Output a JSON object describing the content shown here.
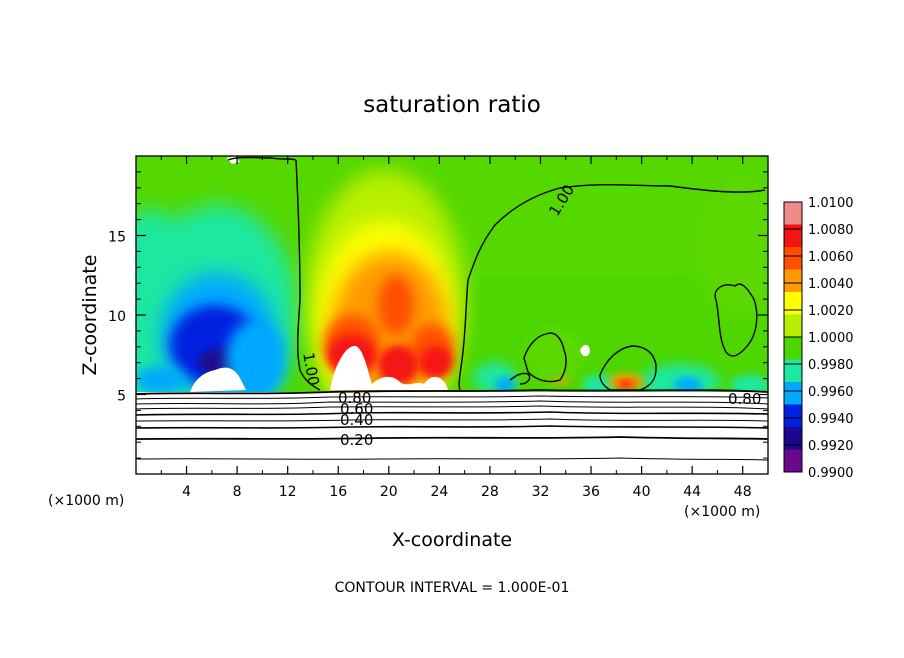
{
  "chart_data": {
    "type": "heatmap",
    "title": "saturation ratio",
    "xlabel": "X-coordinate",
    "ylabel": "Z-coordinate",
    "x_unit": "(×1000 m)",
    "x_unit_right": "(×1000 m)",
    "xlim": [
      0,
      50
    ],
    "ylim": [
      0,
      20
    ],
    "x_ticks": [
      "4",
      "8",
      "12",
      "16",
      "20",
      "24",
      "28",
      "32",
      "36",
      "40",
      "44",
      "48"
    ],
    "y_ticks": [
      "5",
      "10",
      "15"
    ],
    "colorbar": {
      "labels": [
        "1.0100",
        "1.0080",
        "1.0060",
        "1.0040",
        "1.0020",
        "1.0000",
        "0.9980",
        "0.9960",
        "0.9940",
        "0.9920",
        "0.9900"
      ],
      "colors": [
        "#f08b8b",
        "#f51414",
        "#ff5000",
        "#ff9a00",
        "#ffff00",
        "#b8ef00",
        "#4ed600",
        "#1ce8a0",
        "#00a8ff",
        "#0020e0",
        "#1c0890",
        "#6a0a8a"
      ],
      "range": [
        0.99,
        1.01
      ]
    },
    "contour_labels": [
      "1.00",
      "1.00",
      "0.80",
      "0.60",
      "0.40",
      "0.20",
      "0.80"
    ],
    "footer": "CONTOUR INTERVAL = 1.000E-01"
  }
}
